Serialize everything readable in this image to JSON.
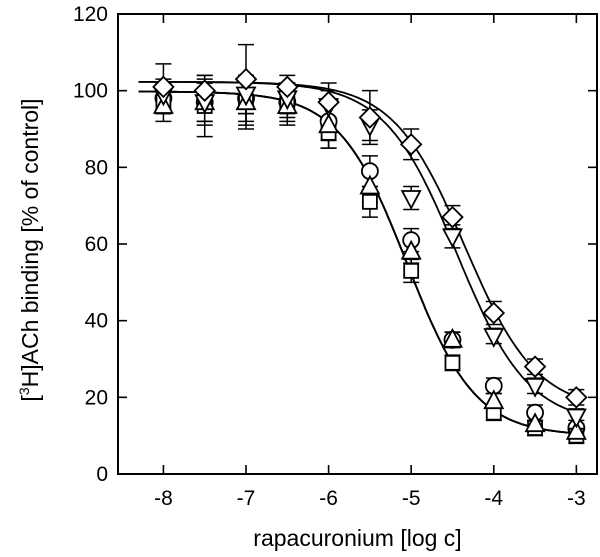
{
  "chart_data": {
    "type": "scatter",
    "xlabel": "rapacuronium [log c]",
    "ylabel_parts": [
      "[",
      "3",
      "H]ACh binding [% of control]"
    ],
    "xlim": [
      -8.55,
      -2.75
    ],
    "ylim": [
      0,
      120
    ],
    "x_ticks": [
      -8,
      -7,
      -6,
      -5,
      -4,
      -3
    ],
    "y_ticks": [
      0,
      20,
      40,
      60,
      80,
      100,
      120
    ],
    "x_tick_labels": [
      "-8",
      "-7",
      "-6",
      "-5",
      "-4",
      "-3"
    ],
    "y_tick_labels": [
      "0",
      "20",
      "40",
      "60",
      "80",
      "100",
      "120"
    ],
    "grid": false,
    "legend": "none",
    "series": [
      {
        "marker": "circle",
        "x": [
          -8,
          -7.5,
          -7,
          -6.5,
          -6,
          -5.5,
          -5,
          -4.5,
          -4,
          -3.5,
          -3
        ],
        "y": [
          98,
          97,
          98,
          97,
          92,
          79,
          61,
          35,
          23,
          16,
          12
        ],
        "err": [
          4,
          5,
          6,
          4,
          5,
          4,
          3,
          2,
          2,
          2,
          2
        ],
        "fit": {
          "top": 99.8,
          "bottom": 10,
          "logic50": -5.05,
          "hill": 1.05
        }
      },
      {
        "marker": "square",
        "x": [
          -8,
          -7.5,
          -7,
          -6.5,
          -6,
          -5.5,
          -5,
          -4.5,
          -4,
          -3.5,
          -3
        ],
        "y": [
          97,
          96,
          97,
          97,
          89,
          71,
          53,
          29,
          16,
          12,
          10
        ],
        "err": [
          3,
          8,
          6,
          5,
          4,
          4,
          3,
          2,
          2,
          2,
          2
        ],
        "fit": {
          "top": 99.8,
          "bottom": 10,
          "logic50": -5.05,
          "hill": 1.05
        }
      },
      {
        "marker": "triangle-up",
        "x": [
          -8,
          -7.5,
          -7,
          -6.5,
          -6,
          -5.5,
          -5,
          -4.5,
          -4,
          -3.5,
          -3
        ],
        "y": [
          96,
          97,
          97,
          96,
          91,
          75,
          58,
          35,
          19,
          13,
          11
        ],
        "err": [
          4,
          6,
          7,
          5,
          6,
          4,
          3,
          2,
          2,
          2,
          2
        ],
        "fit": {
          "top": 99.8,
          "bottom": 10,
          "logic50": -5.05,
          "hill": 1.05
        }
      },
      {
        "marker": "triangle-down",
        "x": [
          -8,
          -7.5,
          -7,
          -6.5,
          -6,
          -5.5,
          -5,
          -4.5,
          -4,
          -3.5,
          -3
        ],
        "y": [
          99,
          97,
          99,
          98,
          96,
          91,
          72,
          62,
          36,
          23,
          15
        ],
        "err": [
          4,
          5,
          5,
          4,
          4,
          4,
          3,
          3,
          2,
          2,
          2
        ],
        "fit": {
          "top": 102.3,
          "bottom": 13,
          "logic50": -4.45,
          "hill": 1.0
        }
      },
      {
        "marker": "diamond",
        "x": [
          -8,
          -7.5,
          -7,
          -6.5,
          -6,
          -5.5,
          -5,
          -4.5,
          -4,
          -3.5,
          -3
        ],
        "y": [
          101,
          100,
          103,
          101,
          97,
          93,
          86,
          67,
          42,
          28,
          20
        ],
        "err": [
          6,
          4,
          9,
          3,
          5,
          7,
          4,
          3,
          3,
          2,
          2
        ],
        "fit": {
          "top": 102.3,
          "bottom": 16.5,
          "logic50": -4.35,
          "hill": 1.0
        }
      }
    ]
  }
}
